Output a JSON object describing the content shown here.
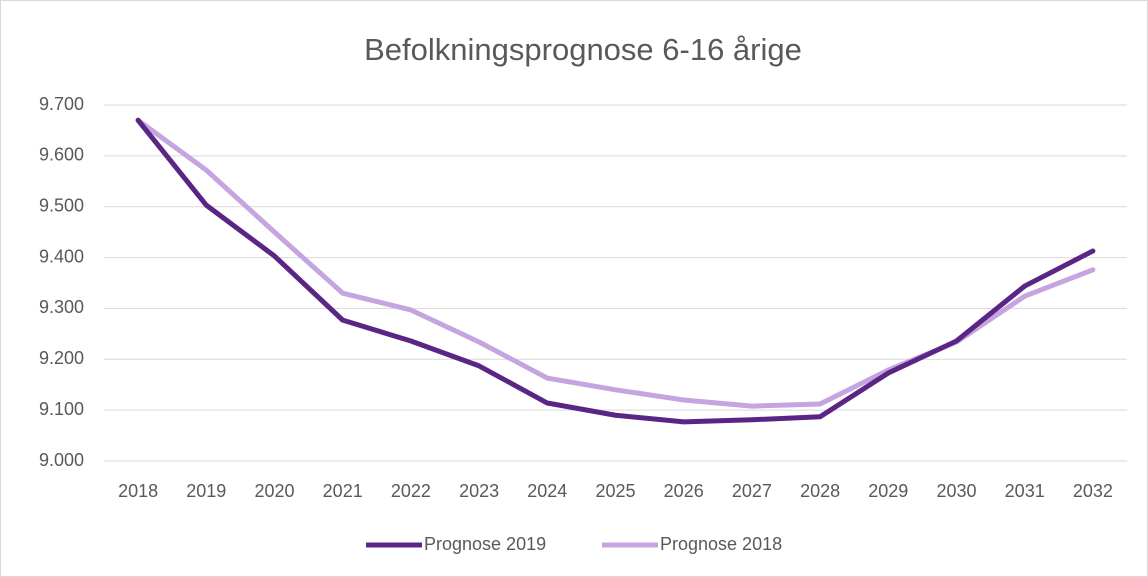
{
  "chart_data": {
    "type": "line",
    "title": "Befolkningsprognose 6-16 årige",
    "categories": [
      "2018",
      "2019",
      "2020",
      "2021",
      "2022",
      "2023",
      "2024",
      "2025",
      "2026",
      "2027",
      "2028",
      "2029",
      "2030",
      "2031",
      "2032"
    ],
    "series": [
      {
        "name": "Prognose 2019",
        "color": "#5b2585",
        "values": [
          9670,
          9503,
          9403,
          9277,
          9236,
          9187,
          9114,
          9090,
          9077,
          9081,
          9087,
          9173,
          9236,
          9344,
          9413
        ]
      },
      {
        "name": "Prognose 2018",
        "color": "#c5a5e0",
        "values": [
          9670,
          9572,
          9450,
          9330,
          9297,
          9234,
          9163,
          9140,
          9120,
          9108,
          9112,
          9179,
          9234,
          9324,
          9376
        ]
      }
    ],
    "ylim": [
      9000,
      9700
    ],
    "yticks": [
      {
        "value": 9000,
        "label": "9.000"
      },
      {
        "value": 9100,
        "label": "9.100"
      },
      {
        "value": 9200,
        "label": "9.200"
      },
      {
        "value": 9300,
        "label": "9.300"
      },
      {
        "value": 9400,
        "label": "9.400"
      },
      {
        "value": 9500,
        "label": "9.500"
      },
      {
        "value": 9600,
        "label": "9.600"
      },
      {
        "value": 9700,
        "label": "9.700"
      }
    ],
    "grid": true,
    "legend": "bottom"
  }
}
